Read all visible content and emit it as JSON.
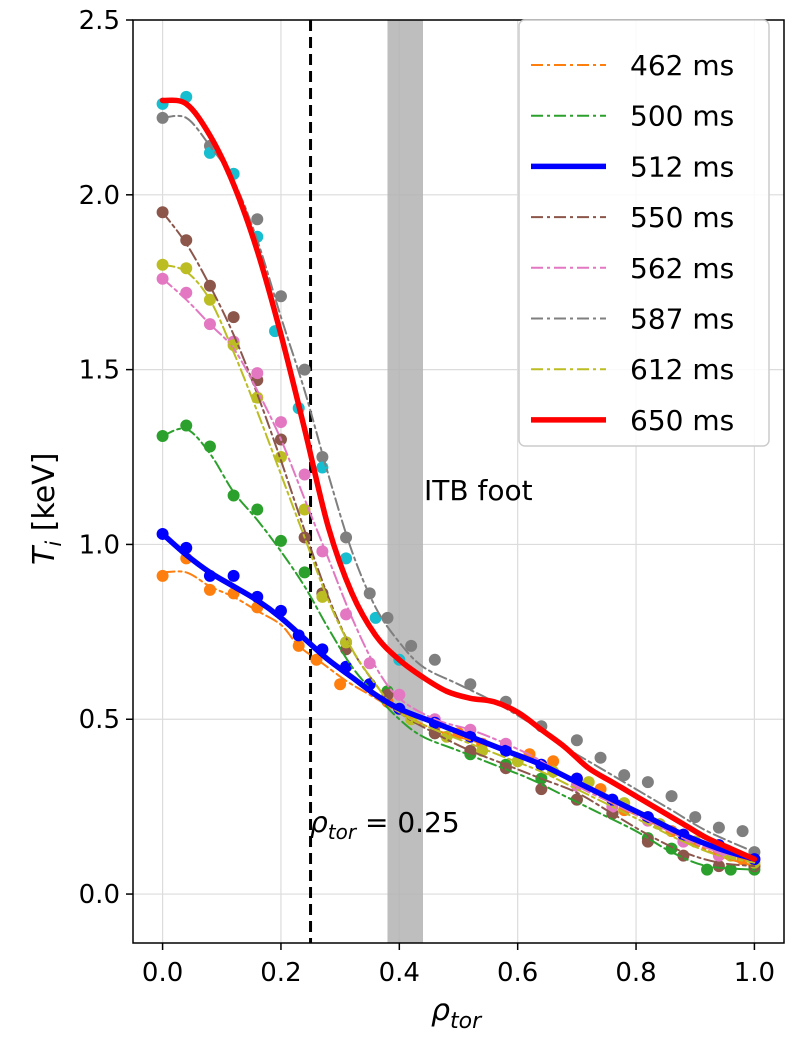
{
  "chart_data": {
    "type": "line",
    "xlabel": "ρ",
    "xlabel_sub": "tor",
    "ylabel": "T",
    "ylabel_sub": "i",
    "ylabel_unit": " [keV]",
    "xlim": [
      -0.05,
      1.05
    ],
    "ylim": [
      -0.14,
      2.5
    ],
    "xticks": [
      0.0,
      0.2,
      0.4,
      0.6,
      0.8,
      1.0
    ],
    "xtick_labels": [
      "0.0",
      "0.2",
      "0.4",
      "0.6",
      "0.8",
      "1.0"
    ],
    "yticks": [
      0.0,
      0.5,
      1.0,
      1.5,
      2.0,
      2.5
    ],
    "ytick_labels": [
      "0.0",
      "0.5",
      "1.0",
      "1.5",
      "2.0",
      "2.5"
    ],
    "grid": true,
    "legend_position": "top-right",
    "annotations": {
      "itb_label": "ITB foot",
      "itb_band": [
        0.38,
        0.44
      ],
      "rho_label_symbol": "ρ",
      "rho_label_sub": "tor",
      "rho_label_value": " = 0.25",
      "vline_x": 0.25,
      "vline_style": "dashed"
    },
    "series": [
      {
        "name": "462 ms",
        "color": "#ff7f0e",
        "style": "dashdot",
        "width": "thin",
        "x": [
          0,
          0.04,
          0.08,
          0.12,
          0.16,
          0.2,
          0.23,
          0.27,
          0.31,
          0.35,
          0.4,
          0.46,
          0.52,
          0.58,
          0.64,
          0.7,
          0.76,
          0.82,
          0.88,
          0.94,
          1.0
        ],
        "y": [
          0.92,
          0.92,
          0.88,
          0.85,
          0.81,
          0.77,
          0.71,
          0.66,
          0.61,
          0.57,
          0.52,
          0.47,
          0.44,
          0.41,
          0.37,
          0.32,
          0.26,
          0.21,
          0.16,
          0.11,
          0.08
        ],
        "points_x": [
          0,
          0.04,
          0.08,
          0.12,
          0.16,
          0.23,
          0.26,
          0.3,
          0.38,
          0.46,
          0.5,
          0.54,
          0.58,
          0.62,
          0.66,
          0.7,
          0.74,
          0.78,
          0.82,
          0.86,
          0.9,
          0.94,
          0.98,
          1.0
        ],
        "points_y": [
          0.91,
          0.96,
          0.87,
          0.86,
          0.82,
          0.71,
          0.67,
          0.6,
          0.55,
          0.48,
          0.46,
          0.43,
          0.42,
          0.4,
          0.38,
          0.33,
          0.3,
          0.24,
          0.22,
          0.18,
          0.15,
          0.12,
          0.1,
          0.08
        ]
      },
      {
        "name": "500 ms",
        "color": "#2ca02c",
        "style": "dashdot",
        "width": "thin",
        "x": [
          0,
          0.04,
          0.08,
          0.12,
          0.16,
          0.2,
          0.24,
          0.28,
          0.32,
          0.36,
          0.4,
          0.44,
          0.5,
          0.56,
          0.62,
          0.68,
          0.74,
          0.8,
          0.86,
          0.92,
          1.0
        ],
        "y": [
          1.31,
          1.33,
          1.26,
          1.15,
          1.07,
          0.98,
          0.88,
          0.76,
          0.65,
          0.57,
          0.5,
          0.45,
          0.41,
          0.37,
          0.33,
          0.28,
          0.23,
          0.18,
          0.12,
          0.08,
          0.07
        ],
        "points_x": [
          0,
          0.04,
          0.08,
          0.12,
          0.16,
          0.2,
          0.24,
          0.27,
          0.31,
          0.38,
          0.46,
          0.52,
          0.58,
          0.64,
          0.7,
          0.76,
          0.82,
          0.86,
          0.92,
          0.96,
          1.0
        ],
        "points_y": [
          1.31,
          1.34,
          1.28,
          1.14,
          1.1,
          1.01,
          0.92,
          0.86,
          0.72,
          0.58,
          0.46,
          0.4,
          0.37,
          0.33,
          0.27,
          0.23,
          0.16,
          0.13,
          0.07,
          0.07,
          0.07
        ]
      },
      {
        "name": "550 ms",
        "color": "#8c564b",
        "style": "dashdot",
        "width": "thin",
        "x": [
          0,
          0.04,
          0.08,
          0.12,
          0.16,
          0.2,
          0.24,
          0.28,
          0.32,
          0.36,
          0.4,
          0.46,
          0.52,
          0.58,
          0.64,
          0.7,
          0.76,
          0.82,
          0.88,
          0.94,
          1.0
        ],
        "y": [
          1.95,
          1.86,
          1.74,
          1.6,
          1.43,
          1.24,
          1.04,
          0.85,
          0.7,
          0.6,
          0.52,
          0.46,
          0.41,
          0.37,
          0.33,
          0.29,
          0.23,
          0.17,
          0.12,
          0.09,
          0.08
        ],
        "points_x": [
          0,
          0.04,
          0.08,
          0.12,
          0.16,
          0.2,
          0.24,
          0.27,
          0.31,
          0.38,
          0.46,
          0.52,
          0.58,
          0.64,
          0.7,
          0.76,
          0.82,
          0.88,
          0.94,
          1.0
        ],
        "points_y": [
          1.95,
          1.87,
          1.74,
          1.65,
          1.47,
          1.3,
          1.02,
          0.86,
          0.7,
          0.57,
          0.46,
          0.41,
          0.36,
          0.3,
          0.27,
          0.23,
          0.15,
          0.11,
          0.08,
          0.08
        ]
      },
      {
        "name": "562 ms",
        "color": "#e377c2",
        "style": "dashdot",
        "width": "thin",
        "x": [
          0,
          0.04,
          0.08,
          0.12,
          0.16,
          0.2,
          0.24,
          0.28,
          0.32,
          0.36,
          0.4,
          0.46,
          0.52,
          0.58,
          0.64,
          0.7,
          0.76,
          0.82,
          0.88,
          0.94,
          1.0
        ],
        "y": [
          1.76,
          1.7,
          1.63,
          1.56,
          1.44,
          1.3,
          1.13,
          0.96,
          0.79,
          0.65,
          0.56,
          0.5,
          0.47,
          0.43,
          0.38,
          0.31,
          0.26,
          0.21,
          0.16,
          0.12,
          0.1
        ],
        "points_x": [
          0,
          0.04,
          0.08,
          0.12,
          0.16,
          0.2,
          0.24,
          0.27,
          0.31,
          0.35,
          0.4,
          0.46,
          0.52,
          0.58,
          0.64,
          0.7,
          0.76,
          0.82,
          0.88,
          0.94,
          1.0
        ],
        "points_y": [
          1.76,
          1.72,
          1.63,
          1.58,
          1.49,
          1.35,
          1.2,
          0.98,
          0.8,
          0.66,
          0.57,
          0.5,
          0.47,
          0.43,
          0.37,
          0.31,
          0.25,
          0.21,
          0.15,
          0.11,
          0.1
        ]
      },
      {
        "name": "587 ms",
        "color": "#7f7f7f",
        "style": "dashdot",
        "width": "thin",
        "x": [
          0,
          0.04,
          0.08,
          0.12,
          0.16,
          0.2,
          0.24,
          0.28,
          0.32,
          0.36,
          0.4,
          0.44,
          0.5,
          0.56,
          0.62,
          0.68,
          0.74,
          0.8,
          0.86,
          0.92,
          1.0
        ],
        "y": [
          2.22,
          2.22,
          2.14,
          2.04,
          1.87,
          1.65,
          1.44,
          1.2,
          0.98,
          0.82,
          0.72,
          0.65,
          0.6,
          0.55,
          0.49,
          0.42,
          0.36,
          0.3,
          0.24,
          0.18,
          0.12
        ],
        "points_x": [
          0,
          0.08,
          0.12,
          0.16,
          0.2,
          0.24,
          0.27,
          0.31,
          0.35,
          0.38,
          0.42,
          0.46,
          0.52,
          0.58,
          0.64,
          0.7,
          0.74,
          0.78,
          0.82,
          0.86,
          0.9,
          0.94,
          0.98,
          1.0
        ],
        "points_y": [
          2.22,
          2.14,
          2.06,
          1.93,
          1.71,
          1.5,
          1.25,
          1.02,
          0.86,
          0.79,
          0.71,
          0.67,
          0.6,
          0.55,
          0.48,
          0.44,
          0.39,
          0.34,
          0.32,
          0.28,
          0.22,
          0.19,
          0.18,
          0.12
        ]
      },
      {
        "name": "612 ms",
        "color": "#bcbd22",
        "style": "dashdot",
        "width": "thin",
        "x": [
          0,
          0.04,
          0.08,
          0.12,
          0.16,
          0.2,
          0.24,
          0.28,
          0.32,
          0.36,
          0.4,
          0.46,
          0.52,
          0.58,
          0.64,
          0.7,
          0.76,
          0.82,
          0.88,
          0.94,
          1.0
        ],
        "y": [
          1.8,
          1.78,
          1.7,
          1.55,
          1.38,
          1.2,
          1.02,
          0.84,
          0.7,
          0.6,
          0.52,
          0.47,
          0.43,
          0.39,
          0.35,
          0.3,
          0.25,
          0.2,
          0.15,
          0.11,
          0.09
        ],
        "points_x": [
          0,
          0.04,
          0.08,
          0.12,
          0.16,
          0.2,
          0.24,
          0.27,
          0.31,
          0.35,
          0.42,
          0.48,
          0.54,
          0.6,
          0.66,
          0.72,
          0.78,
          0.84,
          0.9,
          0.96,
          1.0
        ],
        "points_y": [
          1.8,
          1.79,
          1.7,
          1.57,
          1.42,
          1.25,
          1.1,
          0.85,
          0.72,
          0.6,
          0.5,
          0.45,
          0.41,
          0.38,
          0.35,
          0.32,
          0.26,
          0.2,
          0.15,
          0.11,
          0.09
        ]
      },
      {
        "name": "512 ms",
        "color": "#0000ff",
        "style": "solid",
        "width": "thick",
        "x": [
          0,
          0.04,
          0.08,
          0.12,
          0.16,
          0.2,
          0.24,
          0.28,
          0.32,
          0.36,
          0.4,
          0.46,
          0.52,
          0.58,
          0.64,
          0.7,
          0.76,
          0.82,
          0.88,
          0.94,
          1.0
        ],
        "y": [
          1.03,
          0.97,
          0.92,
          0.88,
          0.84,
          0.79,
          0.73,
          0.67,
          0.62,
          0.57,
          0.53,
          0.49,
          0.45,
          0.41,
          0.37,
          0.32,
          0.27,
          0.22,
          0.17,
          0.13,
          0.1
        ],
        "points_x": [
          0,
          0.04,
          0.08,
          0.12,
          0.16,
          0.2,
          0.23,
          0.27,
          0.31,
          0.35,
          0.4,
          0.46,
          0.52,
          0.58,
          0.64,
          0.7,
          0.76,
          0.82,
          0.88,
          0.94,
          1.0
        ],
        "points_y": [
          1.03,
          0.99,
          0.91,
          0.91,
          0.85,
          0.81,
          0.74,
          0.7,
          0.65,
          0.6,
          0.53,
          0.49,
          0.45,
          0.41,
          0.37,
          0.33,
          0.27,
          0.22,
          0.17,
          0.14,
          0.1
        ]
      },
      {
        "name": "650 ms",
        "color": "#ff0000",
        "style": "solid",
        "width": "thick",
        "x": [
          0,
          0.04,
          0.08,
          0.12,
          0.16,
          0.2,
          0.24,
          0.28,
          0.32,
          0.36,
          0.4,
          0.44,
          0.48,
          0.52,
          0.56,
          0.6,
          0.64,
          0.68,
          0.72,
          0.76,
          0.8,
          0.84,
          0.88,
          0.92,
          0.96,
          1.0
        ],
        "y": [
          2.27,
          2.26,
          2.17,
          2.03,
          1.84,
          1.6,
          1.33,
          1.05,
          0.86,
          0.74,
          0.67,
          0.62,
          0.58,
          0.56,
          0.55,
          0.52,
          0.47,
          0.42,
          0.36,
          0.32,
          0.28,
          0.24,
          0.2,
          0.16,
          0.13,
          0.1
        ],
        "points_x": [
          0,
          0.04,
          0.08,
          0.12,
          0.16,
          0.19,
          0.23,
          0.27,
          0.31,
          0.36,
          0.4
        ],
        "points_y": [
          2.26,
          2.28,
          2.12,
          2.06,
          1.88,
          1.61,
          1.39,
          1.22,
          0.96,
          0.79,
          0.67
        ],
        "points_color": "#17becf"
      }
    ]
  }
}
